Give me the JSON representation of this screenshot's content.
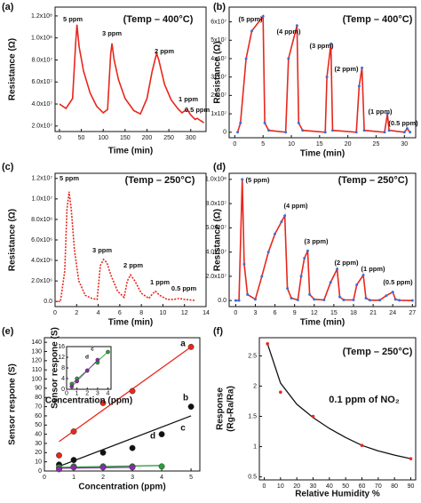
{
  "chart_data": [
    {
      "type": "line",
      "label": "(a)",
      "annotation": "(Temp – 400°C)",
      "x_label": "Time (min)",
      "y_label": "Resistance (Ω)",
      "xlim": [
        -10,
        335
      ],
      "ylim": [
        15000000,
        128000000
      ],
      "xticks": [
        0,
        50,
        100,
        150,
        200,
        250,
        300
      ],
      "yticks": [
        {
          "value": 20000000,
          "label": "2.0x10⁷"
        },
        {
          "value": 40000000,
          "label": "4.0x10⁷"
        },
        {
          "value": 60000000,
          "label": "6.0x10⁷"
        },
        {
          "value": 80000000,
          "label": "8.0x10⁷"
        },
        {
          "value": 100000000,
          "label": "1.0x10⁸"
        },
        {
          "value": 120000000,
          "label": "1.2x10⁸"
        }
      ],
      "series": [
        {
          "color": "#e8271c",
          "x": [
            0,
            15,
            30,
            37,
            40,
            45,
            55,
            70,
            85,
            100,
            110,
            117,
            120,
            125,
            135,
            150,
            170,
            185,
            200,
            212,
            222,
            227,
            240,
            255,
            270,
            280,
            287,
            292,
            300,
            310,
            315,
            322,
            330
          ],
          "values": [
            40000000,
            36000000,
            45000000,
            95000000,
            112000000,
            92000000,
            70000000,
            50000000,
            38000000,
            32000000,
            35000000,
            85000000,
            95000000,
            80000000,
            62000000,
            45000000,
            34000000,
            31000000,
            45000000,
            70000000,
            86000000,
            80000000,
            58000000,
            44000000,
            36000000,
            32000000,
            34000000,
            35000000,
            30000000,
            26000000,
            27000000,
            25000000,
            23000000
          ]
        }
      ],
      "peak_labels": [
        "5 ppm",
        "3 ppm",
        "2 ppm",
        "1 ppm",
        "0.5 ppm"
      ]
    },
    {
      "type": "line",
      "label": "(b)",
      "annotation": "(Temp – 400°C)",
      "x_label": "Time (min)",
      "y_label": "Resistance (Ω)",
      "xlim": [
        -1,
        32
      ],
      "ylim": [
        -3000000,
        68000000
      ],
      "xticks": [
        0,
        5,
        10,
        15,
        20,
        25,
        30
      ],
      "yticks": [
        0,
        {
          "value": 10000000,
          "label": "1x10⁷"
        },
        {
          "value": 20000000,
          "label": "2x10⁷"
        },
        {
          "value": 30000000,
          "label": "3x10⁷"
        },
        {
          "value": 40000000,
          "label": "4x10⁷"
        },
        {
          "value": 50000000,
          "label": "5x10⁷"
        },
        {
          "value": 60000000,
          "label": "6x10⁷"
        }
      ],
      "series": [
        {
          "color": "#e8271c",
          "marker_color": "#3a6fd8",
          "x": [
            0.5,
            1,
            2,
            3,
            5,
            5.3,
            6,
            9,
            9.5,
            11,
            11.3,
            12,
            16,
            16.3,
            17,
            17.3,
            21.5,
            22,
            22.5,
            22.9,
            26.5,
            27,
            27.3,
            30,
            30.5,
            31
          ],
          "values": [
            0,
            5000000,
            40000000,
            55000000,
            63000000,
            5000000,
            1000000,
            0,
            40000000,
            58000000,
            5000000,
            1000000,
            0,
            30000000,
            48000000,
            1000000,
            0,
            25000000,
            35000000,
            1000000,
            0,
            10000000,
            1000000,
            0,
            2000000,
            0
          ]
        }
      ],
      "peak_labels": [
        "(5 ppm)",
        "(4 ppm)",
        "(3 ppm)",
        "(2 ppm)",
        "(1 ppm)",
        "(0.5 ppm)"
      ],
      "peak_label_color": "#2b3fb0"
    },
    {
      "type": "line",
      "label": "(c)",
      "annotation": "(Temp – 250°C)",
      "x_label": "Time (min)",
      "y_label": "Resistance (Ω)",
      "dashed": true,
      "xlim": [
        0,
        14
      ],
      "ylim": [
        -500000,
        12500000
      ],
      "xticks": [
        0,
        2,
        4,
        6,
        8,
        10,
        12,
        14
      ],
      "yticks": [
        {
          "value": 0,
          "label": "0.0"
        },
        {
          "value": 2000000,
          "label": "2.0x10⁶"
        },
        {
          "value": 4000000,
          "label": "4.0x10⁶"
        },
        {
          "value": 6000000,
          "label": "6.0x10⁶"
        },
        {
          "value": 8000000,
          "label": "8.0x10⁶"
        },
        {
          "value": 10000000,
          "label": "1.0x10⁷"
        },
        {
          "value": 12000000,
          "label": "1.2x10⁷"
        }
      ],
      "series": [
        {
          "color": "#e8271c",
          "x": [
            0,
            0.5,
            0.9,
            1.1,
            1.3,
            1.5,
            1.8,
            2.2,
            2.8,
            3.4,
            3.9,
            4.2,
            4.5,
            4.8,
            5.2,
            5.8,
            6.4,
            6.7,
            7,
            7.4,
            8,
            8.7,
            9,
            9.3,
            9.7,
            10.4,
            11,
            11.5,
            12,
            13
          ],
          "values": [
            0,
            0,
            3000000,
            9000000,
            10700000,
            9000000,
            5000000,
            2000000,
            600000,
            300000,
            200000,
            3500000,
            4100000,
            3800000,
            2500000,
            1000000,
            400000,
            2000000,
            2600000,
            2000000,
            800000,
            300000,
            700000,
            1000000,
            600000,
            200000,
            200000,
            300000,
            200000,
            100000
          ]
        }
      ],
      "peak_labels": [
        "5 ppm",
        "3 ppm",
        "2 ppm",
        "1 ppm",
        "0.5 ppm"
      ]
    },
    {
      "type": "line",
      "label": "(d)",
      "annotation": "(Temp – 250°C)",
      "x_label": "Time (min)",
      "y_label": "Resistance (Ω)",
      "xlim": [
        -1,
        27.5
      ],
      "ylim": [
        -5000000,
        105000000
      ],
      "xticks": [
        0,
        3,
        6,
        9,
        12,
        15,
        18,
        21,
        24,
        27
      ],
      "yticks": [
        {
          "value": 0,
          "label": "0.0"
        },
        {
          "value": 20000000,
          "label": "2.0x10⁷"
        },
        {
          "value": 40000000,
          "label": "4.0x10⁷"
        },
        {
          "value": 60000000,
          "label": "6.0x10⁷"
        },
        {
          "value": 80000000,
          "label": "8.0x10⁷"
        },
        {
          "value": 100000000,
          "label": "1.0x10⁸"
        }
      ],
      "series": [
        {
          "color": "#e8271c",
          "marker_color": "#3a6fd8",
          "x": [
            0,
            0.5,
            1,
            1.3,
            1.8,
            3,
            4,
            5,
            6,
            7,
            7.5,
            7.9,
            8.5,
            9.5,
            10,
            10.5,
            11,
            11.3,
            12,
            13.5,
            14.5,
            15.5,
            15.9,
            16.5,
            18,
            18.5,
            19.5,
            19.9,
            20.5,
            22,
            23,
            24,
            24.4,
            25,
            27
          ],
          "values": [
            0,
            0,
            100000000,
            30000000,
            5000000,
            1000000,
            20000000,
            40000000,
            55000000,
            65000000,
            70000000,
            10000000,
            2000000,
            500000,
            20000000,
            35000000,
            41000000,
            5000000,
            1000000,
            500000,
            15000000,
            26000000,
            3000000,
            500000,
            500000,
            13000000,
            21000000,
            2000000,
            300000,
            300000,
            4000000,
            7000000,
            1000000,
            200000,
            0
          ]
        }
      ],
      "peak_labels": [
        "(5 ppm)",
        "(4 ppm)",
        "(3 ppm)",
        "(2 ppm)",
        "(1 ppm)",
        "(0.5 ppm)"
      ],
      "peak_label_color": "#2b3fb0"
    },
    {
      "type": "scatter",
      "label": "(e)",
      "x_label": "Concentration (ppm)",
      "y_label": "Sensor respone (S)",
      "xlim": [
        0,
        5.3
      ],
      "ylim": [
        0,
        145
      ],
      "xticks": [
        0,
        1,
        2,
        3,
        4,
        5
      ],
      "yticks": [
        0,
        10,
        20,
        30,
        40,
        50,
        60,
        70,
        80,
        90,
        100,
        110,
        120,
        130,
        140
      ],
      "series": [
        {
          "name": "a",
          "color": "#e8271c",
          "x": [
            0.5,
            1,
            2,
            3,
            5
          ],
          "values": [
            17,
            43,
            74,
            87,
            135
          ],
          "fit_x": [
            0.5,
            5
          ],
          "fit_values": [
            32,
            135
          ]
        },
        {
          "name": "b",
          "color": "#111111",
          "x": [
            0.5,
            1,
            2,
            3,
            4,
            5
          ],
          "values": [
            7,
            12,
            20,
            25,
            40,
            70
          ],
          "fit_x": [
            0.5,
            5
          ],
          "fit_values": [
            5,
            60
          ]
        },
        {
          "name": "c",
          "color": "#2a9d3a",
          "x": [
            0.5,
            1,
            2,
            3,
            4
          ],
          "values": [
            4,
            5,
            5,
            5,
            5
          ],
          "fit_x": [
            0.5,
            4
          ],
          "fit_values": [
            4,
            6
          ]
        },
        {
          "name": "d",
          "color": "#8a2aa8",
          "x": [
            0.5,
            1,
            2,
            3
          ],
          "values": [
            2,
            4,
            4,
            4
          ],
          "fit_x": [
            0.5,
            3
          ],
          "fit_values": [
            3,
            4
          ]
        }
      ],
      "inset": {
        "type": "scatter",
        "x_label": "Concentration (ppm)",
        "y_label": "Sensor respone (S)",
        "xlim": [
          0,
          4.3
        ],
        "ylim": [
          0,
          16
        ],
        "xticks": [
          0,
          1,
          2,
          3,
          4
        ],
        "yticks": [
          0,
          4,
          8,
          12,
          16
        ],
        "series": [
          {
            "name": "c",
            "color": "#2a9d3a",
            "x": [
              0.5,
              1,
              2,
              3,
              4
            ],
            "values": [
              2,
              4,
              7,
              10,
              14
            ],
            "fit_x": [
              0.5,
              4
            ],
            "fit_values": [
              2,
              14
            ]
          },
          {
            "name": "d",
            "color": "#8a2aa8",
            "x": [
              0.5,
              1,
              2,
              3
            ],
            "values": [
              1,
              3,
              7,
              11
            ],
            "fit_x": [
              0.5,
              3
            ],
            "fit_values": [
              1,
              11
            ]
          }
        ]
      }
    },
    {
      "type": "scatter",
      "label": "(f)",
      "annotation": "(Temp – 250°C)",
      "note": "0.1 ppm of NO₂",
      "x_label": "Relative Humidity %",
      "y_label": "Response",
      "y_label_2": "(Rg-Ra/Ra)",
      "xlim": [
        -3,
        93
      ],
      "ylim": [
        0.45,
        2.8
      ],
      "xticks": [
        0,
        10,
        20,
        30,
        40,
        50,
        60,
        70,
        80,
        90
      ],
      "yticks": [
        0.5,
        1,
        1.5,
        2,
        2.5
      ],
      "series": [
        {
          "color": "#e8271c",
          "x": [
            2,
            10,
            30,
            60,
            90
          ],
          "values": [
            2.7,
            1.9,
            1.5,
            1.02,
            0.8
          ],
          "fit_color": "#111111",
          "fit_x": [
            2,
            10,
            20,
            30,
            40,
            50,
            60,
            70,
            80,
            90
          ],
          "fit_values": [
            2.7,
            2.05,
            1.7,
            1.48,
            1.3,
            1.15,
            1.02,
            0.93,
            0.86,
            0.8
          ]
        }
      ]
    }
  ]
}
